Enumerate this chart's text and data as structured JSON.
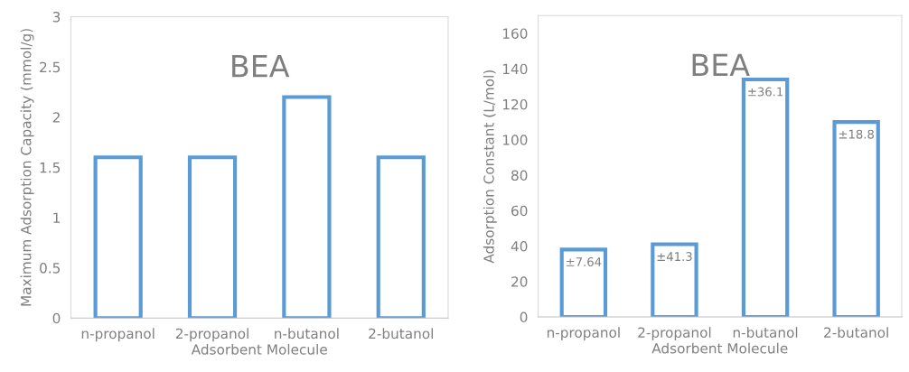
{
  "chart_data": [
    {
      "type": "bar",
      "title": "BEA",
      "xlabel": "Adsorbent Molecule",
      "ylabel": "Maximum Adsorption Capacity (mmol/g)",
      "categories": [
        "n-propanol",
        "2-propanol",
        "n-butanol",
        "2-butanol"
      ],
      "values": [
        1.6,
        1.6,
        2.2,
        1.6
      ],
      "color": "#5b9bd5",
      "ylim": [
        0,
        3
      ],
      "yticks": [
        0,
        0.5,
        1,
        1.5,
        2,
        2.5,
        3
      ],
      "grid": false
    },
    {
      "type": "bar",
      "title": "BEA",
      "xlabel": "Adsorbent Molecule",
      "ylabel": "Adsorption Constant (L/mol)",
      "categories": [
        "n-propanol",
        "2-propanol",
        "n-butanol",
        "2-butanol"
      ],
      "values": [
        38,
        41,
        134,
        110
      ],
      "color": "#5b9bd5",
      "ylim": [
        0,
        170
      ],
      "yticks": [
        0,
        20,
        40,
        60,
        80,
        100,
        120,
        140,
        160
      ],
      "grid": false,
      "annotations": [
        {
          "text": "±7.64",
          "x": "n-propanol",
          "y": 38
        },
        {
          "text": "±41.3",
          "x": "2-propanol",
          "y": 41
        },
        {
          "text": "±36.1",
          "x": "n-butanol",
          "y": 134
        },
        {
          "text": "±18.8",
          "x": "2-butanol",
          "y": 110
        }
      ]
    }
  ]
}
